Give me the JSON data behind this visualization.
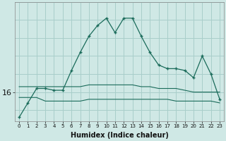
{
  "xlabel": "Humidex (Indice chaleur)",
  "background_color": "#cfe8e5",
  "grid_color": "#a8ceca",
  "line_color": "#1a6b5a",
  "x": [
    0,
    1,
    2,
    3,
    4,
    5,
    6,
    7,
    8,
    9,
    10,
    11,
    12,
    13,
    14,
    15,
    16,
    17,
    18,
    19,
    20,
    21,
    22,
    23
  ],
  "line1": [
    15.3,
    15.7,
    16.1,
    16.1,
    16.05,
    16.05,
    16.6,
    17.1,
    17.55,
    17.85,
    18.05,
    17.65,
    18.05,
    18.05,
    17.55,
    17.1,
    16.75,
    16.65,
    16.65,
    16.6,
    16.4,
    17.0,
    16.5,
    15.8
  ],
  "line2": [
    16.15,
    16.15,
    16.15,
    16.15,
    16.15,
    16.15,
    16.15,
    16.15,
    16.2,
    16.2,
    16.2,
    16.2,
    16.2,
    16.2,
    16.15,
    16.15,
    16.1,
    16.1,
    16.1,
    16.05,
    16.0,
    16.0,
    16.0,
    16.0
  ],
  "line3": [
    15.85,
    15.85,
    15.85,
    15.75,
    15.75,
    15.75,
    15.75,
    15.75,
    15.8,
    15.8,
    15.8,
    15.8,
    15.8,
    15.8,
    15.8,
    15.8,
    15.8,
    15.8,
    15.75,
    15.75,
    15.75,
    15.75,
    15.75,
    15.7
  ],
  "ytick_vals": [
    16
  ],
  "xlim": [
    -0.5,
    23.5
  ],
  "ylim": [
    15.2,
    18.5
  ]
}
